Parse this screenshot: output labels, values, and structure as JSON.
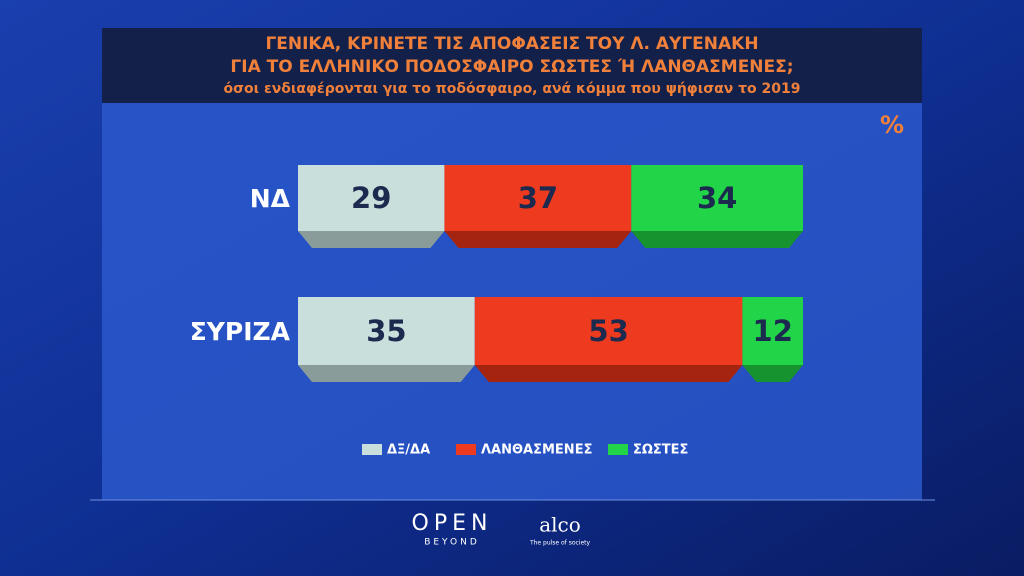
{
  "chart_data": {
    "type": "stacked-bar-horizontal",
    "title_lines": [
      "ΓΕΝΙΚΑ, ΚΡΙΝΕΤΕ ΤΙΣ ΑΠΟΦΑΣΕΙΣ ΤΟΥ Λ. ΑΥΓΕΝΑΚΗ",
      "ΓΙΑ ΤΟ ΕΛΛΗΝΙΚΟ ΠΟΔΟΣΦΑΙΡΟ ΣΩΣΤΕΣ Ή ΛΑΝΘΑΣΜΕΝΕΣ;"
    ],
    "subtitle": "όσοι ενδιαφέρονται για το ποδόσφαιρο, ανά κόμμα που ψήφισαν το 2019",
    "unit": "%",
    "categories": [
      "ΝΔ",
      "ΣΥΡΙΖΑ"
    ],
    "xlim": [
      0,
      100
    ],
    "series": [
      {
        "name": "ΔΞ/ΔΑ",
        "color": "#c9dfdc",
        "shade": "#8a9c9a",
        "values": [
          29,
          35
        ]
      },
      {
        "name": "ΛΑΝΘΑΣΜΕΝΕΣ",
        "color": "#ee3b1f",
        "shade": "#a52410",
        "values": [
          37,
          53
        ]
      },
      {
        "name": "ΣΩΣΤΕΣ",
        "color": "#22d447",
        "shade": "#16932e",
        "values": [
          34,
          12
        ]
      }
    ]
  },
  "branding": {
    "channel": "OPEN",
    "channel_sub": "BEYOND",
    "pollster": "alco",
    "pollster_sub": "The pulse of society"
  }
}
